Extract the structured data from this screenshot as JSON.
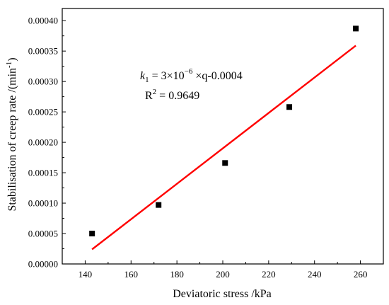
{
  "chart_data": {
    "type": "scatter",
    "xlabel": "Deviatoric stress /kPa",
    "ylabel_main": "Stabilisation of creep rate /(min",
    "ylabel_sup": "-1",
    "ylabel_close": ")",
    "xlim": [
      130,
      270
    ],
    "ylim": [
      0,
      0.00042
    ],
    "x_ticks": [
      140,
      160,
      180,
      200,
      220,
      240,
      260
    ],
    "x_tick_labels": [
      "140",
      "160",
      "180",
      "200",
      "220",
      "240",
      "260"
    ],
    "y_ticks": [
      0,
      5e-05,
      0.0001,
      0.00015,
      0.0002,
      0.00025,
      0.0003,
      0.00035,
      0.0004
    ],
    "y_tick_labels": [
      "0.00000",
      "0.00005",
      "0.00010",
      "0.00015",
      "0.00020",
      "0.00025",
      "0.00030",
      "0.00035",
      "0.00040"
    ],
    "series": [
      {
        "kind": "points",
        "marker": "square",
        "color": "#000000",
        "x": [
          143,
          172,
          201,
          229,
          258
        ],
        "y": [
          5e-05,
          9.7e-05,
          0.000166,
          0.000258,
          0.000387
        ]
      },
      {
        "kind": "fit-line",
        "color": "#ff0000",
        "x": [
          143,
          258
        ],
        "y": [
          2.4e-05,
          0.000359
        ]
      }
    ],
    "annotation": {
      "eq_var": "k",
      "eq_sub": "1",
      "eq_mid": " = 3×10",
      "eq_exp": "−6",
      "eq_tail": " ×q-0.0004",
      "r2_main": "R",
      "r2_sup": "2",
      "r2_tail": " = 0.9649"
    },
    "grid": false,
    "legend": "none"
  }
}
